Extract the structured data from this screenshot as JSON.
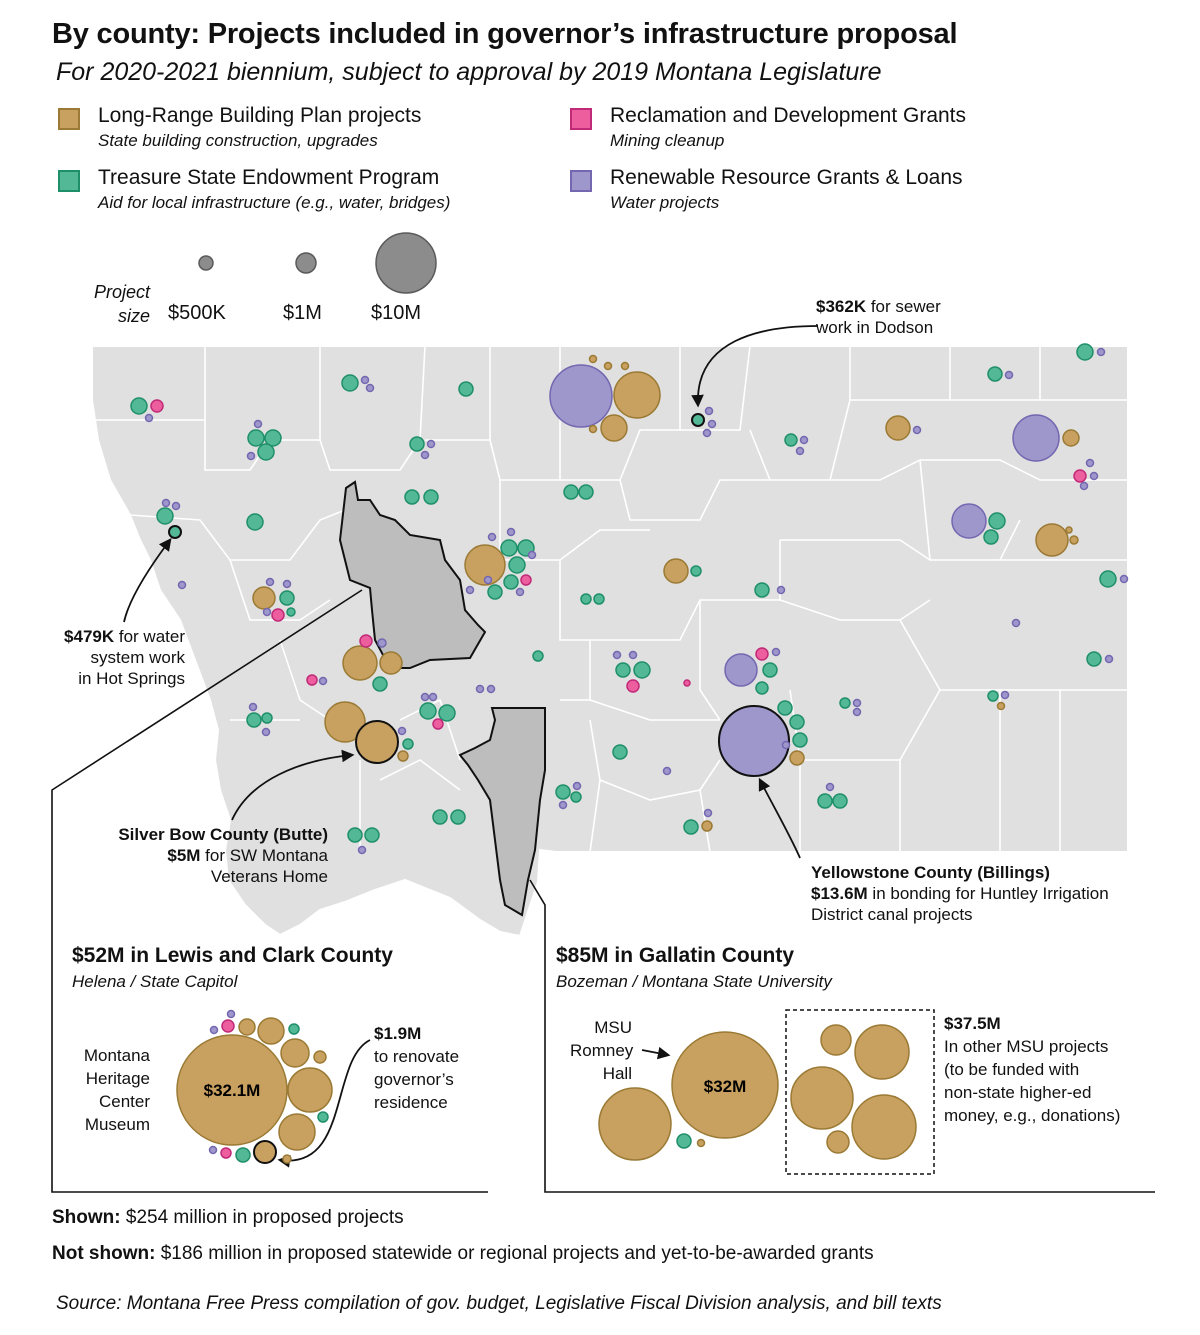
{
  "title": "By county: Projects included in governor’s infrastructure proposal",
  "subtitle": "For 2020-2021 biennium, subject to approval by 2019 Montana Legislature",
  "colors": {
    "long_range": "#c8a060",
    "long_range_stroke": "#9a7a34",
    "treasure": "#52b896",
    "treasure_stroke": "#1f8f6a",
    "reclamation": "#ec5e9e",
    "reclamation_stroke": "#c02a78",
    "renewable": "#9d97cc",
    "renewable_stroke": "#7467b0",
    "size_circle": "#8c8c8c",
    "map_fill": "#e0e0e0",
    "highlight_county": "#bdbdbd"
  },
  "legend": [
    {
      "key": "long_range",
      "label": "Long-Range Building Plan projects",
      "sub": "State building construction, upgrades"
    },
    {
      "key": "treasure",
      "label": "Treasure State Endowment Program",
      "sub": "Aid for local infrastructure (e.g., water, bridges)"
    },
    {
      "key": "reclamation",
      "label": "Reclamation and Development Grants",
      "sub": "Mining cleanup"
    },
    {
      "key": "renewable",
      "label": "Renewable Resource Grants & Loans",
      "sub": "Water projects"
    }
  ],
  "size_legend": {
    "title_line1": "Project",
    "title_line2": "size",
    "items": [
      {
        "label": "$500K",
        "value_millions": 0.5
      },
      {
        "label": "$1M",
        "value_millions": 1
      },
      {
        "label": "$10M",
        "value_millions": 10
      }
    ]
  },
  "annotations": {
    "dodson_bold": "$362K",
    "dodson_text1": " for sewer",
    "dodson_text2": "work in Dodson",
    "hotsprings_bold": "$479K",
    "hotsprings_text1": " for water",
    "hotsprings_text2": "system work",
    "hotsprings_text3": "in Hot Springs",
    "silverbow_title": "Silver Bow County (Butte)",
    "silverbow_bold": "$5M",
    "silverbow_text1": " for SW Montana",
    "silverbow_text2": "Veterans Home",
    "yellowstone_title": "Yellowstone County (Billings)",
    "yellowstone_bold": "$13.6M",
    "yellowstone_text1": " in bonding for Huntley Irrigation",
    "yellowstone_text2": "District canal projects"
  },
  "lewis_clark": {
    "title": "$52M in Lewis and Clark County",
    "subtitle": "Helena / State Capitol",
    "big_label": "$32.1M",
    "left_lines": [
      "Montana",
      "Heritage",
      "Center",
      "Museum"
    ],
    "note_bold": "$1.9M",
    "note_lines": [
      "to renovate",
      "governor’s",
      "residence"
    ]
  },
  "gallatin": {
    "title": "$85M in Gallatin County",
    "subtitle": "Bozeman / Montana State University",
    "big_label": "$32M",
    "left_lines": [
      "MSU",
      "Romney",
      "Hall"
    ],
    "note_bold": "$37.5M",
    "note_lines": [
      "In other MSU projects",
      "(to be funded with",
      "non-state higher-ed",
      "money, e.g., donations)"
    ]
  },
  "shown_bold": "Shown:",
  "shown_text": " $254 million in proposed projects",
  "notshown_bold": "Not shown:",
  "notshown_text": " $186 million in proposed statewide or regional projects and yet-to-be-awarded grants",
  "source": "Source: Montana Free Press compilation of gov. budget, Legislative Fiscal Division analysis, and bill texts"
}
